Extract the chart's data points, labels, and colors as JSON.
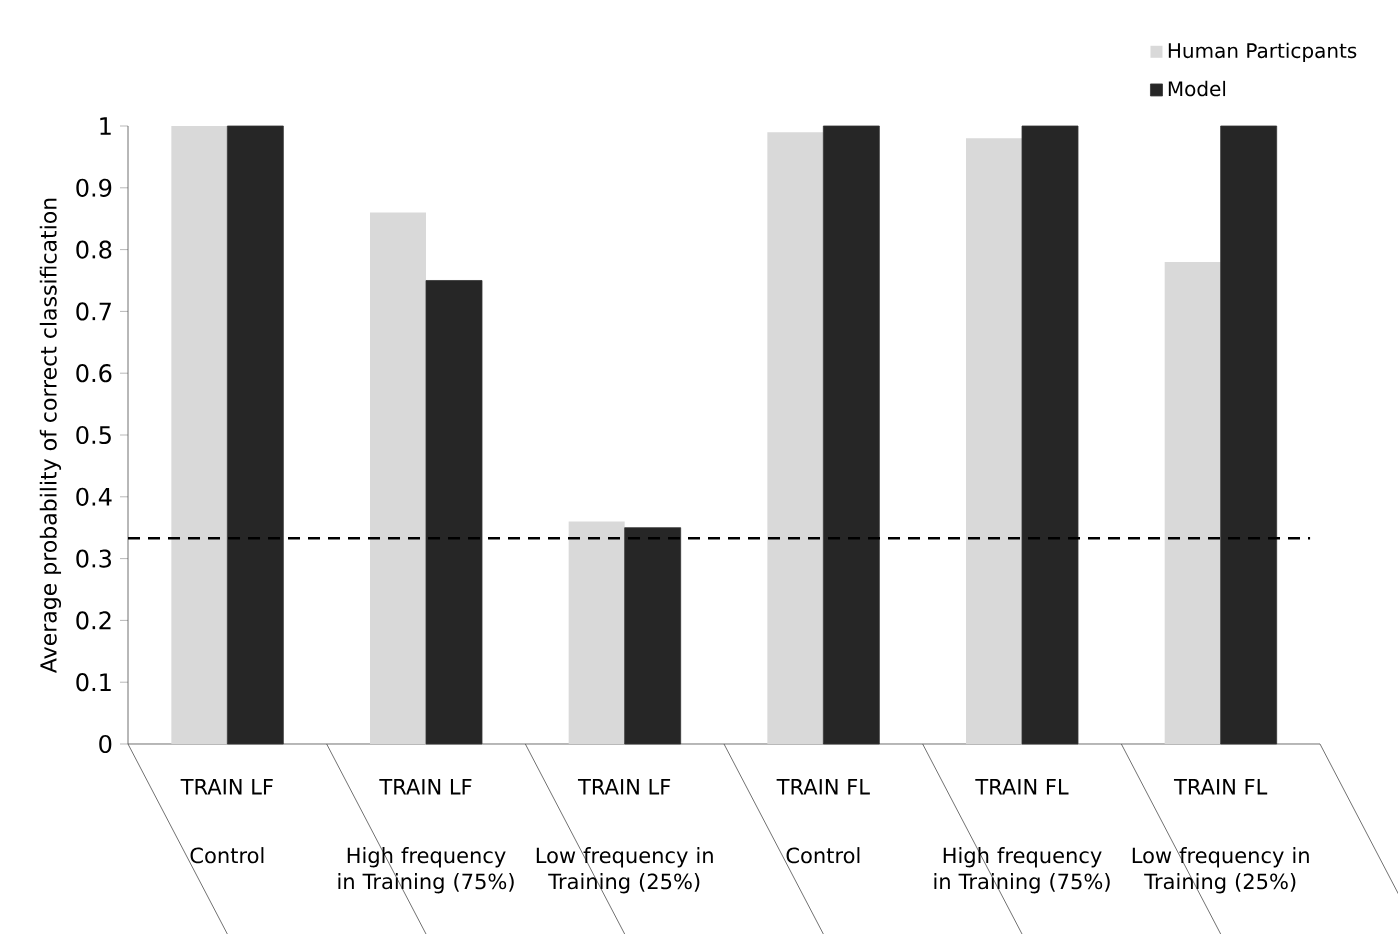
{
  "chart_data": {
    "type": "bar",
    "ylabel": "Average probability of correct classification",
    "categories": [
      "Control",
      "High frequency in Training (75%)",
      "Low frequency in Training (25%)",
      "Control",
      "High frequency in Training (75%)",
      "Low frequency in Training (25%)"
    ],
    "annotations": [
      "TRAIN LF",
      "TRAIN LF",
      "TRAIN LF",
      "TRAIN FL",
      "TRAIN FL",
      "TRAIN FL"
    ],
    "ylim": [
      0,
      1
    ],
    "yticks": [
      0,
      0.1,
      0.2,
      0.3,
      0.4,
      0.5,
      0.6,
      0.7,
      0.8,
      0.9,
      1
    ],
    "legend": "top right",
    "series": [
      {
        "name": "Human Particpants",
        "color": "#d9d9d9",
        "values": [
          1,
          0.86,
          0.36,
          0.99,
          0.98,
          0.78
        ]
      },
      {
        "name": "Model",
        "color": "#262626",
        "values": [
          1,
          0.75,
          0.35,
          1,
          1,
          1
        ]
      }
    ],
    "ref_lines": [
      {
        "axis": "y",
        "value": 0.333,
        "color": "#000000",
        "line_style": "dashed"
      }
    ]
  }
}
